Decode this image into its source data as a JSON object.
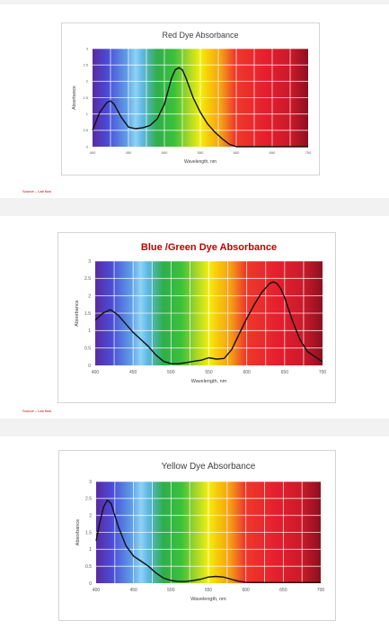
{
  "source_label": "Source – Lab flow",
  "colors": {
    "curve": "#111111",
    "blue_green_title": "#c00000",
    "source_text": "#c00000"
  },
  "chart_data": [
    {
      "type": "line",
      "title": "Red Dye Absorbance",
      "xlabel": "Wavelength, nm",
      "ylabel": "Absorbance",
      "xlim": [
        400,
        700
      ],
      "ylim": [
        0,
        3
      ],
      "xticks": [
        400,
        450,
        500,
        550,
        600,
        650,
        700
      ],
      "yticks": [
        0,
        0.5,
        1,
        1.5,
        2,
        2.5,
        3
      ],
      "grid": true,
      "background": "visible spectrum gradient",
      "series": [
        {
          "x": [
            400,
            410,
            420,
            425,
            430,
            440,
            450,
            460,
            470,
            480,
            490,
            500,
            505,
            510,
            515,
            520,
            525,
            530,
            540,
            550,
            560,
            570,
            580,
            590,
            600,
            620,
            650,
            700
          ],
          "y": [
            0.5,
            1.05,
            1.35,
            1.4,
            1.3,
            0.9,
            0.6,
            0.55,
            0.58,
            0.65,
            0.85,
            1.3,
            1.7,
            2.1,
            2.35,
            2.42,
            2.35,
            2.1,
            1.5,
            1.05,
            0.7,
            0.45,
            0.25,
            0.08,
            0,
            0,
            0,
            0
          ]
        }
      ]
    },
    {
      "type": "line",
      "title": "Blue /Green Dye Absorbance",
      "xlabel": "Wavelength, nm",
      "ylabel": "Absorbance",
      "xlim": [
        400,
        700
      ],
      "ylim": [
        0,
        3
      ],
      "xticks": [
        400,
        450,
        500,
        550,
        600,
        650,
        700
      ],
      "yticks": [
        0,
        0.5,
        1,
        1.5,
        2,
        2.5,
        3
      ],
      "grid": true,
      "background": "visible spectrum gradient",
      "series": [
        {
          "x": [
            400,
            410,
            420,
            430,
            440,
            450,
            460,
            470,
            480,
            490,
            500,
            510,
            520,
            530,
            540,
            550,
            560,
            570,
            580,
            590,
            600,
            610,
            620,
            630,
            635,
            640,
            645,
            650,
            660,
            670,
            680,
            690,
            700
          ],
          "y": [
            1.3,
            1.5,
            1.6,
            1.45,
            1.2,
            0.95,
            0.75,
            0.55,
            0.3,
            0.12,
            0.05,
            0.05,
            0.08,
            0.12,
            0.15,
            0.22,
            0.18,
            0.2,
            0.45,
            0.9,
            1.35,
            1.75,
            2.1,
            2.35,
            2.4,
            2.35,
            2.2,
            1.95,
            1.3,
            0.75,
            0.4,
            0.25,
            0.1
          ]
        }
      ]
    },
    {
      "type": "line",
      "title": "Yellow Dye Absorbance",
      "xlabel": "Wavelength, nm",
      "ylabel": "Absorbance",
      "xlim": [
        400,
        700
      ],
      "ylim": [
        0,
        3
      ],
      "xticks": [
        400,
        450,
        500,
        550,
        600,
        650,
        700
      ],
      "yticks": [
        0,
        0.5,
        1,
        1.5,
        2,
        2.5,
        3
      ],
      "grid": true,
      "background": "visible spectrum gradient",
      "series": [
        {
          "x": [
            400,
            405,
            410,
            415,
            420,
            425,
            430,
            440,
            450,
            460,
            470,
            480,
            490,
            500,
            510,
            520,
            530,
            540,
            550,
            560,
            570,
            580,
            590,
            600,
            620,
            650,
            700
          ],
          "y": [
            1.25,
            1.8,
            2.25,
            2.45,
            2.35,
            2.0,
            1.65,
            1.1,
            0.8,
            0.65,
            0.5,
            0.3,
            0.15,
            0.08,
            0.05,
            0.05,
            0.08,
            0.12,
            0.18,
            0.2,
            0.18,
            0.12,
            0.06,
            0.03,
            0.02,
            0.02,
            0.02
          ]
        }
      ]
    }
  ]
}
